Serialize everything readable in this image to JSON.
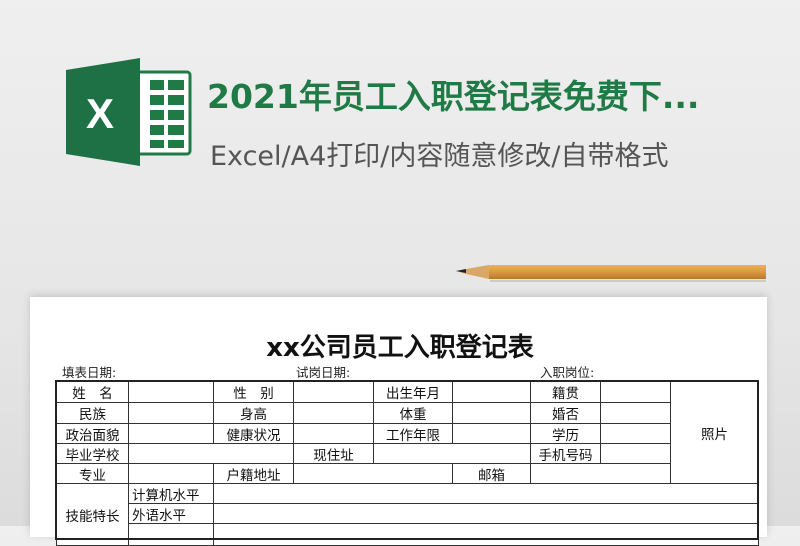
{
  "banner": {
    "title": "2021年员工入职登记表免费下...",
    "subtitle": "Excel/A4打印/内容随意修改/自带格式",
    "logo_letter": "X",
    "brand_color": "#1f7a45"
  },
  "document": {
    "title": "xx公司员工入职登记表",
    "fill_date_label": "填表日期:",
    "trial_date_label": "试岗日期:",
    "position_label": "入职岗位:",
    "rows": [
      [
        "姓　名",
        "",
        "性　别",
        "",
        "出生年月",
        "",
        "籍贯",
        ""
      ],
      [
        "民族",
        "",
        "身高",
        "",
        "体重",
        "",
        "婚否",
        ""
      ],
      [
        "政治面貌",
        "",
        "健康状况",
        "",
        "工作年限",
        "",
        "学历",
        ""
      ],
      [
        "毕业学校",
        "",
        "现住址",
        "",
        "手机号码",
        ""
      ],
      [
        "专业",
        "",
        "户籍地址",
        "",
        "邮箱",
        ""
      ]
    ],
    "photo_label": "照片",
    "skills_label": "技能特长",
    "skills_rows": [
      "计算机水平",
      "外语水平"
    ]
  }
}
